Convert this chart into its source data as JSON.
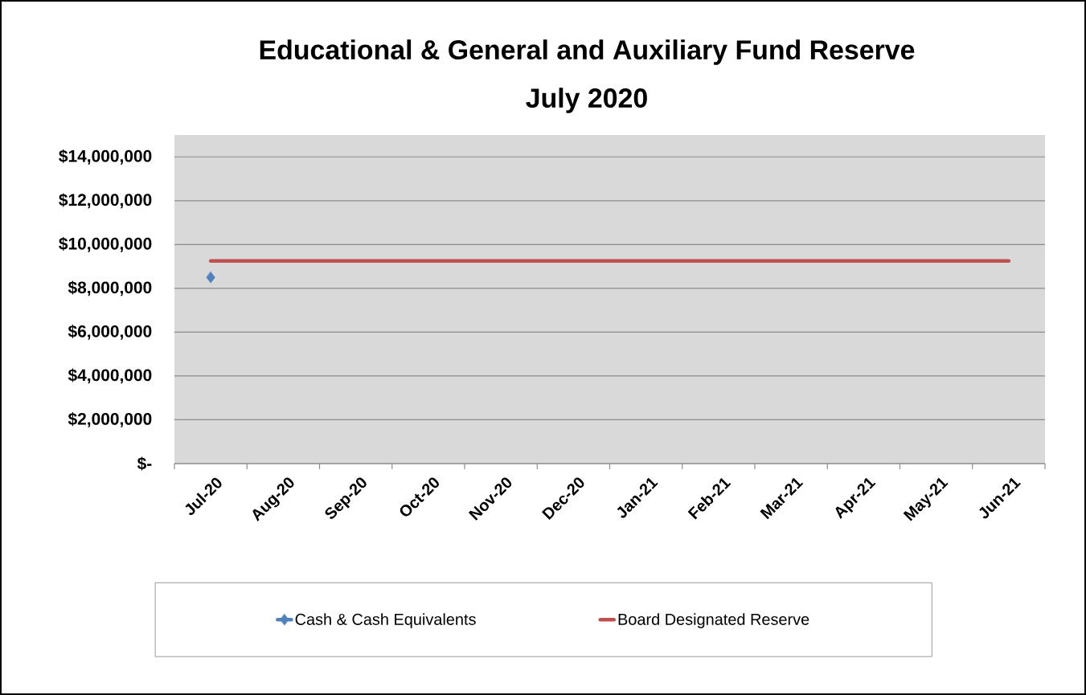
{
  "chart_data": {
    "type": "line",
    "title": "Educational & General and Auxiliary Fund Reserve",
    "subtitle": "July 2020",
    "categories": [
      "Jul-20",
      "Aug-20",
      "Sep-20",
      "Oct-20",
      "Nov-20",
      "Dec-20",
      "Jan-21",
      "Feb-21",
      "Mar-21",
      "Apr-21",
      "May-21",
      "Jun-21"
    ],
    "series": [
      {
        "name": "Cash & Cash Equivalents",
        "color": "#4f81bd",
        "marker": "diamond",
        "values": [
          8500000,
          null,
          null,
          null,
          null,
          null,
          null,
          null,
          null,
          null,
          null,
          null
        ]
      },
      {
        "name": "Board Designated Reserve",
        "color": "#c0504d",
        "marker": "none",
        "values": [
          9250000,
          9250000,
          9250000,
          9250000,
          9250000,
          9250000,
          9250000,
          9250000,
          9250000,
          9250000,
          9250000,
          9250000
        ]
      }
    ],
    "ylim": [
      0,
      15000000
    ],
    "yticks": [
      {
        "value": 0,
        "label": "$-"
      },
      {
        "value": 2000000,
        "label": "$2,000,000"
      },
      {
        "value": 4000000,
        "label": "$4,000,000"
      },
      {
        "value": 6000000,
        "label": "$6,000,000"
      },
      {
        "value": 8000000,
        "label": "$8,000,000"
      },
      {
        "value": 10000000,
        "label": "$10,000,000"
      },
      {
        "value": 12000000,
        "label": "$12,000,000"
      },
      {
        "value": 14000000,
        "label": "$14,000,000"
      }
    ],
    "grid": "y",
    "legend": "bottom"
  }
}
